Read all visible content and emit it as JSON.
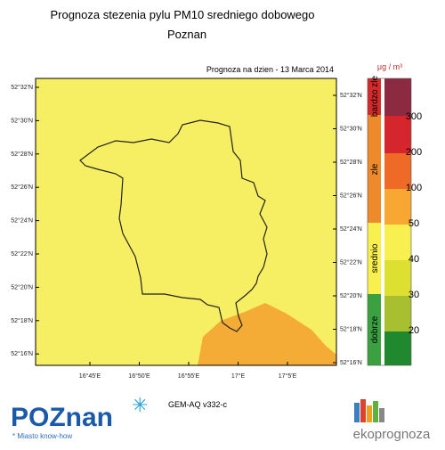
{
  "title": "Prognoza stezenia pylu PM10 sredniego dobowego",
  "subtitle": "Poznan",
  "date": "Prognoza na dzien -  13 Marca 2014",
  "lat_labels": [
    "52°32'N",
    "52°30'N",
    "52°28'N",
    "52°26'N",
    "52°24'N",
    "52°22'N",
    "52°20'N",
    "52°18'N",
    "52°16'N"
  ],
  "lon_labels": [
    "16°45'E",
    "16°50'E",
    "16°55'E",
    "17°E",
    "17°5'E"
  ],
  "unit": "μg / m³",
  "categories": [
    "bardzo zle",
    "zle",
    "srednio",
    "dobrze"
  ],
  "scale_labels": [
    "300",
    "200",
    "100",
    "50",
    "40",
    "30",
    "20"
  ],
  "model": "GEM-AQ v332-c",
  "logo": {
    "name": "POZnan",
    "slogan": "* Miasto know-how"
  },
  "brand": "ekoprognoza"
}
